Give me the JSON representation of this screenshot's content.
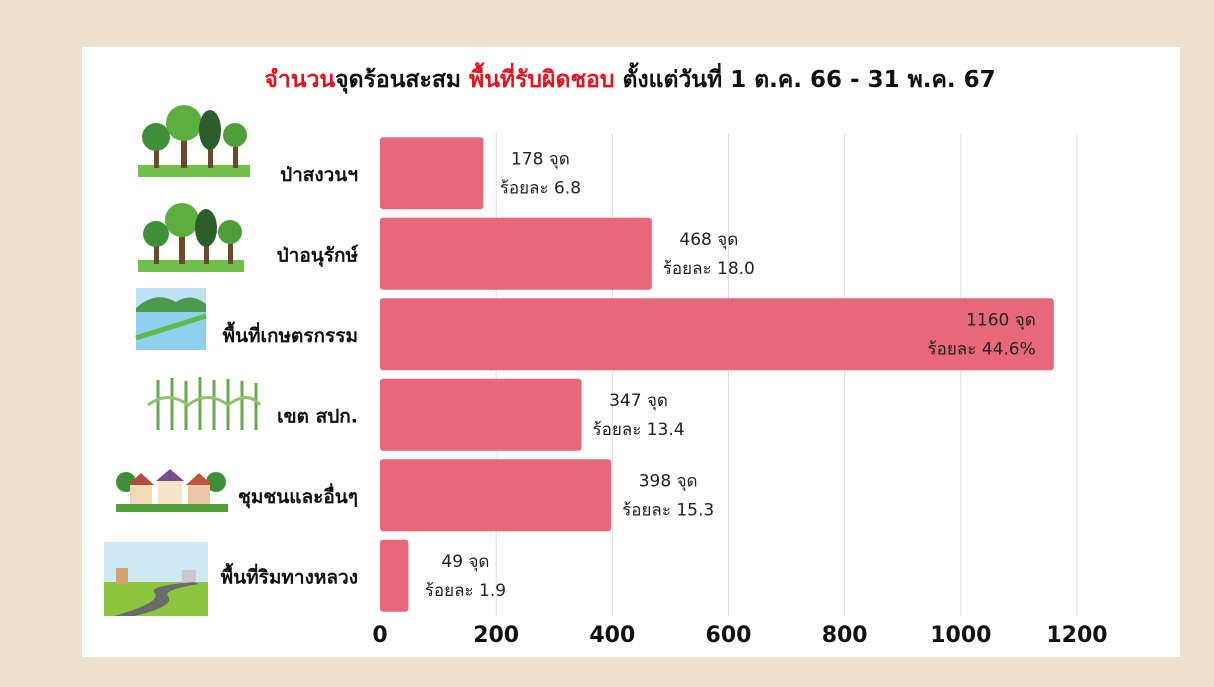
{
  "chart_data": {
    "type": "hbar",
    "title": [
      "จำนวน",
      "จุดร้อนสะสม",
      "พื้นที่รับผิดชอบ",
      "ตั้งแต่วันที่ 1 ต.ค. 66 - 31 พ.ค. 67"
    ],
    "title_colors": [
      "#e8101c",
      "#111111",
      "#e8101c",
      "#111111"
    ],
    "categories": [
      "ป่าสงวนฯ",
      "ป่าอนุรักษ์",
      "พื้นที่เกษตรกรรม",
      "เขต สปก.",
      "ชุมชนและอื่นๆ",
      "พื้นที่ริมทางหลวง"
    ],
    "values": [
      178,
      468,
      1160,
      347,
      398,
      49
    ],
    "value_labels": [
      "178 จุด",
      "468 จุด",
      "1160 จุด",
      "347 จุด",
      "398 จุด",
      "49 จุด"
    ],
    "percent": [
      6.8,
      18.0,
      44.6,
      13.4,
      15.3,
      1.9
    ],
    "percent_labels": [
      "ร้อยละ 6.8",
      "ร้อยละ 18.0",
      "ร้อยละ 44.6%",
      "ร้อยละ 13.4",
      "ร้อยละ 15.3",
      "ร้อยละ 1.9"
    ],
    "color": "#e8687a",
    "xlim": [
      0,
      1200
    ],
    "xticks": [
      0,
      200,
      400,
      600,
      800,
      1000,
      1200
    ],
    "grid": true
  }
}
